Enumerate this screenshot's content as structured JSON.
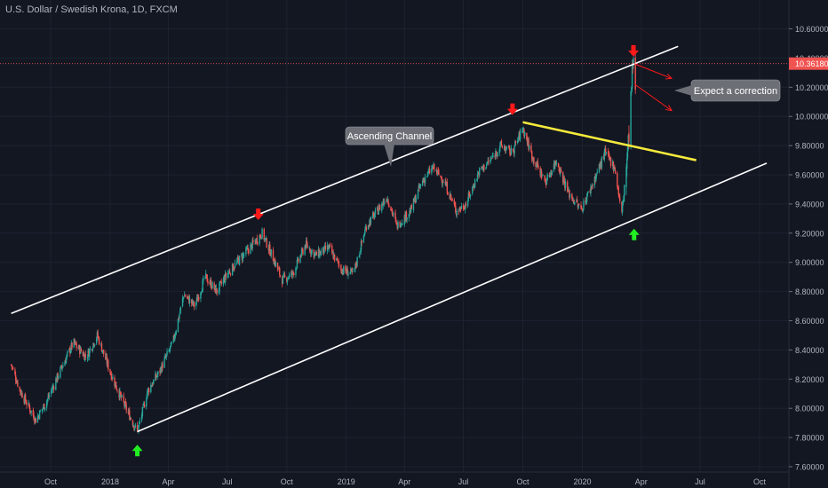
{
  "header": {
    "title": "U.S. Dollar / Swedish Krona, 1D, FXCM"
  },
  "colors": {
    "background": "#131722",
    "grid": "#1e2230",
    "up": "#26a69a",
    "down": "#ef5350",
    "channel": "#ffffff",
    "resistance": "#f5ea3c",
    "arrow_down": "#ff1a1a",
    "arrow_up": "#22ee22",
    "price_label": "#f05350",
    "callout_bg": "#6c6f76",
    "axis_text": "#b2b5be"
  },
  "chart_data": {
    "type": "candlestick",
    "symbol": "USDSEK",
    "timeframe": "1D",
    "source": "FXCM",
    "current_price": "10.36180",
    "ylim": [
      7.6,
      10.7
    ],
    "y_ticks": [
      "7.60000",
      "7.80000",
      "8.00000",
      "8.20000",
      "8.40000",
      "8.60000",
      "8.80000",
      "9.00000",
      "9.20000",
      "9.40000",
      "9.60000",
      "9.80000",
      "10.00000",
      "10.20000",
      "10.40000",
      "10.60000"
    ],
    "x_ticks": [
      {
        "label": "Oct",
        "date": "2017-10-01"
      },
      {
        "label": "2018",
        "date": "2018-01-01"
      },
      {
        "label": "Apr",
        "date": "2018-04-01"
      },
      {
        "label": "Jul",
        "date": "2018-07-01"
      },
      {
        "label": "Oct",
        "date": "2018-10-01"
      },
      {
        "label": "2019",
        "date": "2019-01-01"
      },
      {
        "label": "Apr",
        "date": "2019-04-01"
      },
      {
        "label": "Jul",
        "date": "2019-07-01"
      },
      {
        "label": "Oct",
        "date": "2019-10-01"
      },
      {
        "label": "2020",
        "date": "2020-01-01"
      },
      {
        "label": "Apr",
        "date": "2020-04-01"
      },
      {
        "label": "Jul",
        "date": "2020-07-01"
      },
      {
        "label": "Oct",
        "date": "2020-10-01"
      }
    ],
    "price_path": [
      [
        "2017-08-01",
        8.3
      ],
      [
        "2017-08-15",
        8.12
      ],
      [
        "2017-09-08",
        7.92
      ],
      [
        "2017-09-25",
        8.05
      ],
      [
        "2017-10-15",
        8.25
      ],
      [
        "2017-11-05",
        8.45
      ],
      [
        "2017-11-25",
        8.35
      ],
      [
        "2017-12-12",
        8.5
      ],
      [
        "2018-01-01",
        8.25
      ],
      [
        "2018-01-20",
        8.05
      ],
      [
        "2018-02-12",
        7.84
      ],
      [
        "2018-02-28",
        8.12
      ],
      [
        "2018-03-18",
        8.25
      ],
      [
        "2018-04-08",
        8.45
      ],
      [
        "2018-04-25",
        8.78
      ],
      [
        "2018-05-12",
        8.7
      ],
      [
        "2018-05-28",
        8.9
      ],
      [
        "2018-06-15",
        8.8
      ],
      [
        "2018-07-01",
        8.92
      ],
      [
        "2018-07-20",
        9.02
      ],
      [
        "2018-08-05",
        9.1
      ],
      [
        "2018-08-24",
        9.2
      ],
      [
        "2018-09-08",
        9.05
      ],
      [
        "2018-09-24",
        8.88
      ],
      [
        "2018-10-10",
        8.92
      ],
      [
        "2018-10-30",
        9.12
      ],
      [
        "2018-11-15",
        9.05
      ],
      [
        "2018-12-05",
        9.1
      ],
      [
        "2018-12-25",
        8.95
      ],
      [
        "2019-01-12",
        8.92
      ],
      [
        "2019-02-01",
        9.25
      ],
      [
        "2019-02-18",
        9.35
      ],
      [
        "2019-03-05",
        9.45
      ],
      [
        "2019-03-20",
        9.25
      ],
      [
        "2019-04-10",
        9.35
      ],
      [
        "2019-04-28",
        9.55
      ],
      [
        "2019-05-15",
        9.65
      ],
      [
        "2019-06-02",
        9.55
      ],
      [
        "2019-06-20",
        9.35
      ],
      [
        "2019-07-05",
        9.4
      ],
      [
        "2019-07-25",
        9.62
      ],
      [
        "2019-08-12",
        9.7
      ],
      [
        "2019-08-28",
        9.8
      ],
      [
        "2019-09-14",
        9.75
      ],
      [
        "2019-10-01",
        9.92
      ],
      [
        "2019-10-16",
        9.72
      ],
      [
        "2019-11-05",
        9.55
      ],
      [
        "2019-11-22",
        9.7
      ],
      [
        "2019-12-10",
        9.48
      ],
      [
        "2019-12-30",
        9.36
      ],
      [
        "2020-01-18",
        9.55
      ],
      [
        "2020-02-05",
        9.75
      ],
      [
        "2020-02-20",
        9.65
      ],
      [
        "2020-03-02",
        9.33
      ],
      [
        "2020-03-12",
        9.8
      ],
      [
        "2020-03-19",
        10.36
      ],
      [
        "2020-03-23",
        10.2
      ]
    ]
  },
  "annotations": {
    "ascending_channel": "Ascending Channel",
    "expect_correction": "Expect a correction"
  },
  "drawings": {
    "channel_upper": [
      [
        "2017-08-01",
        8.65
      ],
      [
        "2020-05-28",
        10.48
      ]
    ],
    "channel_lower": [
      [
        "2018-02-12",
        7.84
      ],
      [
        "2020-10-12",
        9.68
      ]
    ],
    "yellow_resistance": [
      [
        "2019-10-01",
        9.96
      ],
      [
        "2020-06-25",
        9.7
      ]
    ],
    "red_down_arrows": [
      [
        "2018-08-18",
        9.32
      ],
      [
        "2019-09-15",
        10.04
      ],
      [
        "2020-03-20",
        10.44
      ]
    ],
    "green_up_arrows": [
      [
        "2018-02-12",
        7.72
      ],
      [
        "2020-03-21",
        9.2
      ]
    ],
    "projection_arrows": [
      [
        [
          "2020-03-22",
          10.36
        ],
        [
          "2020-05-18",
          10.26
        ]
      ],
      [
        [
          "2020-03-22",
          10.22
        ],
        [
          "2020-05-18",
          10.04
        ]
      ]
    ]
  }
}
